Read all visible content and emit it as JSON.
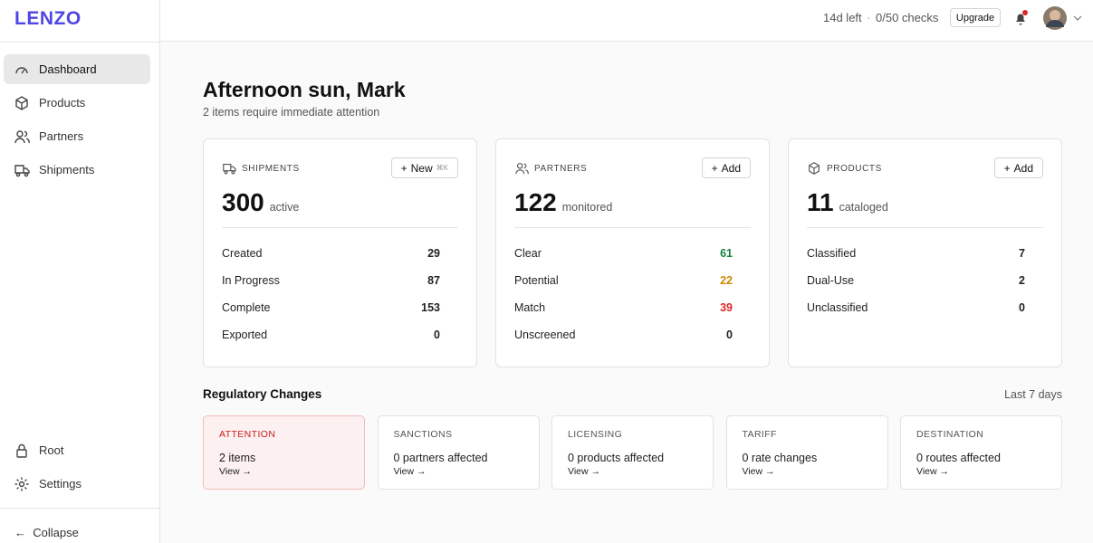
{
  "brand": "LENZO",
  "topbar": {
    "trial": "14d left",
    "checks": "0/50 checks",
    "upgrade": "Upgrade"
  },
  "nav": [
    "Dashboard",
    "Products",
    "Partners",
    "Shipments"
  ],
  "nav_bottom": [
    "Root",
    "Settings"
  ],
  "collapse": "Collapse",
  "greeting": "Afternoon sun, Mark",
  "subtitle": "2 items require immediate attention",
  "cards": [
    {
      "title": "SHIPMENTS",
      "action": "New",
      "shortcut": "⌘K",
      "count": 300,
      "count_label": "active",
      "rows": [
        {
          "label": "Created",
          "value": 29
        },
        {
          "label": "In Progress",
          "value": 87
        },
        {
          "label": "Complete",
          "value": 153
        },
        {
          "label": "Exported",
          "value": 0
        }
      ]
    },
    {
      "title": "PARTNERS",
      "action": "Add",
      "count": 122,
      "count_label": "monitored",
      "rows": [
        {
          "label": "Clear",
          "value": 61,
          "color": "#15803d"
        },
        {
          "label": "Potential",
          "value": 22,
          "color": "#ca8a04"
        },
        {
          "label": "Match",
          "value": 39,
          "color": "#dc2626"
        },
        {
          "label": "Unscreened",
          "value": 0
        }
      ]
    },
    {
      "title": "PRODUCTS",
      "action": "Add",
      "count": 11,
      "count_label": "cataloged",
      "rows": [
        {
          "label": "Classified",
          "value": 7
        },
        {
          "label": "Dual-Use",
          "value": 2
        },
        {
          "label": "Unclassified",
          "value": 0
        }
      ]
    }
  ],
  "regulatory": {
    "title": "Regulatory Changes",
    "period": "Last 7 days",
    "items": [
      {
        "title": "ATTENTION",
        "text": "2 items",
        "link": "View →",
        "highlight": true
      },
      {
        "title": "SANCTIONS",
        "text": "0 partners affected",
        "link": "View →"
      },
      {
        "title": "LICENSING",
        "text": "0 products affected",
        "link": "View →"
      },
      {
        "title": "TARIFF",
        "text": "0 rate changes",
        "link": "View →"
      },
      {
        "title": "DESTINATION",
        "text": "0 routes affected",
        "link": "View →"
      }
    ]
  }
}
